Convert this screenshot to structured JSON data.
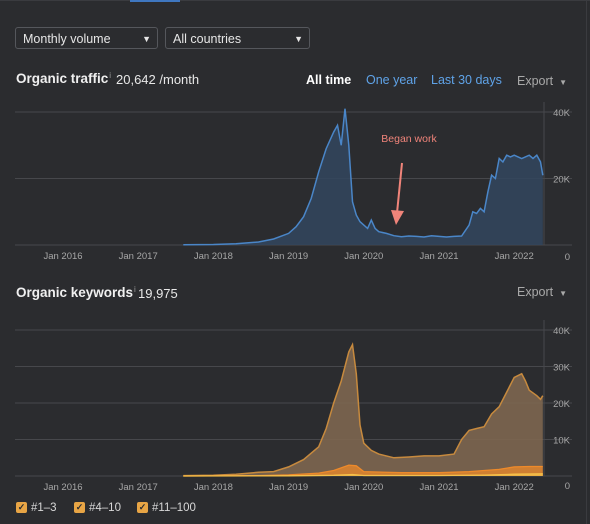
{
  "controls": {
    "volume_select": "Monthly volume",
    "country_select": "All countries"
  },
  "traffic": {
    "title": "Organic traffic",
    "info_mark": "i",
    "value": "20,642 /month",
    "ranges": [
      "All time",
      "One year",
      "Last 30 days"
    ],
    "export_label": "Export",
    "annotation": "Began work",
    "colors": {
      "line": "#4a86c8",
      "fill": "#33465e",
      "annotation": "#f0847a"
    }
  },
  "keywords": {
    "title": "Organic keywords",
    "info_mark": "i",
    "value": "19,975",
    "export_label": "Export",
    "colors": {
      "pos1_3": "#f5c04a",
      "pos4_10": "#ee8a2a",
      "pos11_100": "#c78a3e",
      "fill": "#7d6650"
    }
  },
  "legend": [
    "#1–3",
    "#4–10",
    "#11–100"
  ],
  "chart_data": [
    {
      "type": "area",
      "x_ticks": [
        "Jan 2016",
        "Jan 2017",
        "Jan 2018",
        "Jan 2019",
        "Jan 2020",
        "Jan 2021",
        "Jan 2022"
      ],
      "y_ticks": [
        "0",
        "20K",
        "40K"
      ],
      "ylim": [
        0,
        40000
      ],
      "series": [
        {
          "x": [
            2017.6,
            2018.0,
            2018.3,
            2018.6,
            2018.8,
            2019.0,
            2019.1,
            2019.2,
            2019.3,
            2019.4,
            2019.5,
            2019.6,
            2019.65,
            2019.7,
            2019.75,
            2019.8,
            2019.85,
            2019.9,
            2019.95,
            2020.0,
            2020.05,
            2020.1,
            2020.15,
            2020.2,
            2020.3,
            2020.4,
            2020.5,
            2020.6,
            2020.7,
            2020.8,
            2020.9,
            2021.0,
            2021.1,
            2021.2,
            2021.3,
            2021.4,
            2021.45,
            2021.5,
            2021.55,
            2021.6,
            2021.65,
            2021.7,
            2021.75,
            2021.8,
            2021.85,
            2021.9,
            2021.95,
            2022.0,
            2022.1,
            2022.2,
            2022.25,
            2022.3,
            2022.35,
            2022.38
          ],
          "y": [
            100,
            150,
            400,
            900,
            1800,
            3500,
            5500,
            8500,
            14000,
            22000,
            29000,
            34000,
            36000,
            30000,
            41000,
            30000,
            13000,
            9000,
            7000,
            6000,
            5000,
            7500,
            5000,
            4000,
            3500,
            2800,
            2500,
            2700,
            2600,
            2400,
            2800,
            2600,
            2400,
            2600,
            2700,
            6000,
            10000,
            9500,
            11000,
            10000,
            16000,
            21000,
            20000,
            26000,
            25000,
            27000,
            26500,
            27000,
            26000,
            27000,
            26000,
            27000,
            25000,
            21000
          ]
        }
      ]
    },
    {
      "type": "area",
      "x_ticks": [
        "Jan 2016",
        "Jan 2017",
        "Jan 2018",
        "Jan 2019",
        "Jan 2020",
        "Jan 2021",
        "Jan 2022"
      ],
      "y_ticks": [
        "0",
        "10K",
        "20K",
        "30K",
        "40K"
      ],
      "ylim": [
        0,
        40000
      ],
      "series": [
        {
          "name": "#11–100",
          "x": [
            2017.6,
            2018.0,
            2018.3,
            2018.6,
            2018.8,
            2019.0,
            2019.2,
            2019.4,
            2019.5,
            2019.6,
            2019.7,
            2019.75,
            2019.8,
            2019.85,
            2019.9,
            2019.95,
            2020.0,
            2020.1,
            2020.2,
            2020.4,
            2020.6,
            2020.8,
            2021.0,
            2021.2,
            2021.3,
            2021.4,
            2021.5,
            2021.6,
            2021.7,
            2021.8,
            2021.9,
            2022.0,
            2022.05,
            2022.1,
            2022.15,
            2022.2,
            2022.3,
            2022.35,
            2022.38
          ],
          "y": [
            100,
            200,
            500,
            1000,
            1200,
            2500,
            4500,
            8000,
            13000,
            20000,
            26000,
            30000,
            34000,
            36000,
            28000,
            14000,
            9000,
            7000,
            6000,
            5000,
            5200,
            5500,
            5500,
            6000,
            10000,
            12500,
            13000,
            13500,
            17000,
            19000,
            23000,
            27000,
            27500,
            28000,
            26000,
            23500,
            22000,
            21000,
            22000
          ]
        },
        {
          "name": "#4–10",
          "x": [
            2017.6,
            2018.6,
            2019.0,
            2019.4,
            2019.6,
            2019.8,
            2019.9,
            2020.0,
            2020.5,
            2021.0,
            2021.4,
            2021.8,
            2022.0,
            2022.2,
            2022.38
          ],
          "y": [
            0,
            100,
            300,
            800,
            1500,
            3000,
            2800,
            1200,
            900,
            900,
            1200,
            1800,
            2500,
            2600,
            2600
          ]
        },
        {
          "name": "#1–3",
          "x": [
            2017.6,
            2019.0,
            2019.6,
            2019.85,
            2020.0,
            2021.0,
            2021.6,
            2022.0,
            2022.38
          ],
          "y": [
            0,
            50,
            200,
            400,
            150,
            150,
            250,
            500,
            600
          ]
        }
      ]
    }
  ]
}
